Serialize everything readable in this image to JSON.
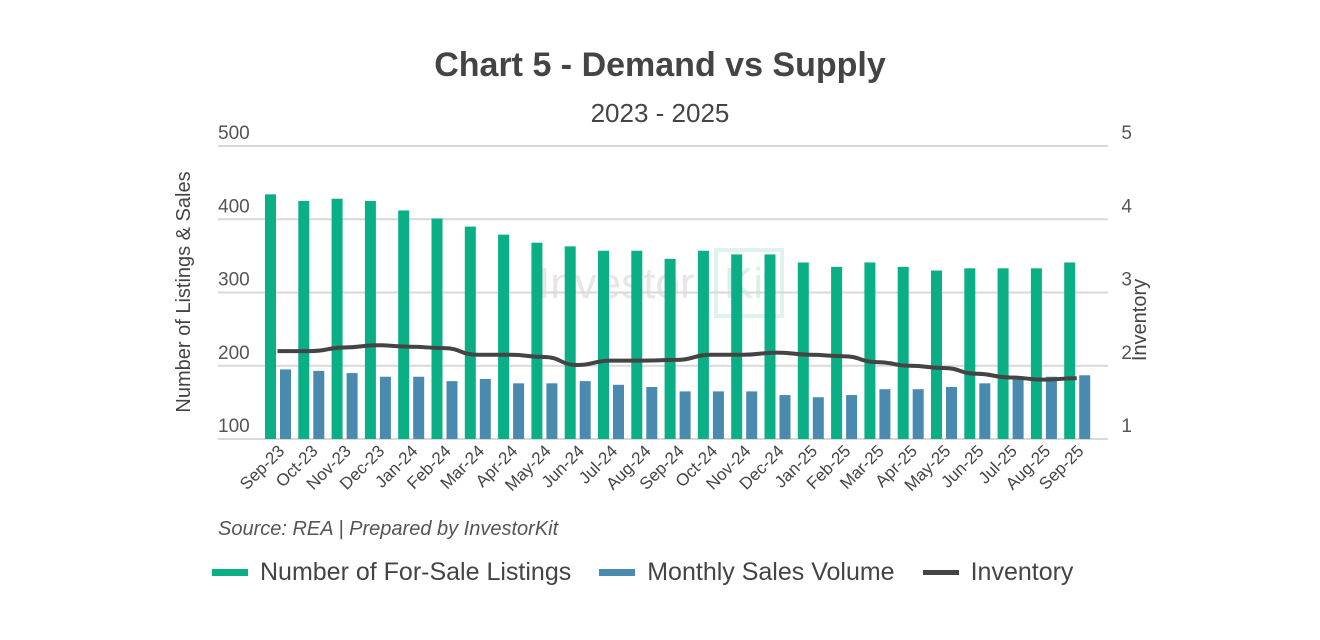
{
  "chart_data": {
    "type": "bar",
    "title": "Chart 5 - Demand vs Supply",
    "subtitle": "2023 - 2025",
    "ylabel": "Number of Listings & Sales",
    "y2label": "Inventory",
    "ylim": [
      100,
      500
    ],
    "y2lim": [
      1,
      5
    ],
    "yticks": [
      "100",
      "200",
      "300",
      "400",
      "500"
    ],
    "y2ticks": [
      "1",
      "2",
      "3",
      "4",
      "5"
    ],
    "grid": true,
    "legend_position": "bottom",
    "categories": [
      "Sep-23",
      "Oct-23",
      "Nov-23",
      "Dec-23",
      "Jan-24",
      "Feb-24",
      "Mar-24",
      "Apr-24",
      "May-24",
      "Jun-24",
      "Jul-24",
      "Aug-24",
      "Sep-24",
      "Oct-24",
      "Nov-24",
      "Dec-24",
      "Jan-25",
      "Feb-25",
      "Mar-25",
      "Apr-25",
      "May-25",
      "Jun-25",
      "Jul-25",
      "Aug-25",
      "Sep-25"
    ],
    "series": [
      {
        "name": "Number of For-Sale Listings",
        "type": "bar",
        "axis": "left",
        "color": "#0BAF85",
        "values": [
          434,
          425,
          428,
          425,
          412,
          401,
          390,
          379,
          368,
          363,
          357,
          357,
          346,
          357,
          352,
          352,
          341,
          335,
          341,
          335,
          330,
          333,
          333,
          333,
          341
        ]
      },
      {
        "name": "Monthly Sales Volume",
        "type": "bar",
        "axis": "left",
        "color": "#4A8AAE",
        "values": [
          195,
          193,
          190,
          185,
          185,
          179,
          182,
          176,
          176,
          179,
          174,
          171,
          165,
          165,
          165,
          160,
          157,
          160,
          168,
          168,
          171,
          176,
          182,
          185,
          187
        ]
      },
      {
        "name": "Inventory",
        "type": "line",
        "axis": "right",
        "color": "#444444",
        "values": [
          2.2,
          2.2,
          2.25,
          2.28,
          2.26,
          2.24,
          2.15,
          2.15,
          2.12,
          2.01,
          2.07,
          2.07,
          2.08,
          2.15,
          2.15,
          2.18,
          2.15,
          2.13,
          2.05,
          2.0,
          1.97,
          1.89,
          1.84,
          1.81,
          1.83
        ]
      }
    ],
    "source": "Source: REA | Prepared by InvestorKit",
    "watermark": "InvestorKit"
  }
}
